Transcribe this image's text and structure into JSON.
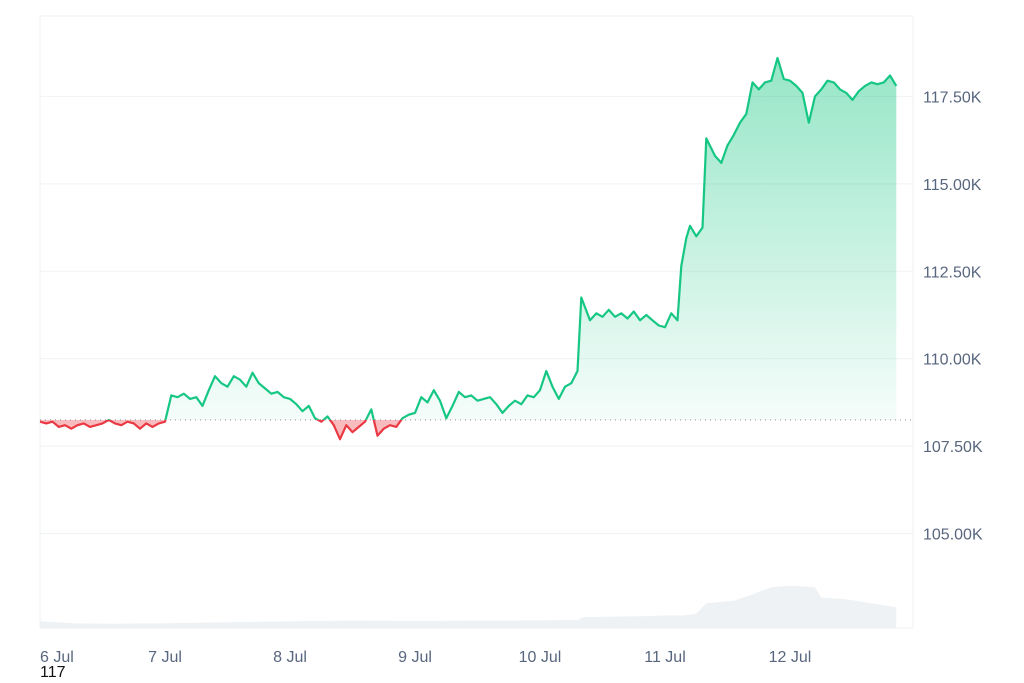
{
  "chart_data": {
    "type": "area",
    "title": "",
    "xlabel": "",
    "ylabel": "",
    "x_tick_labels": [
      "6 Jul",
      "7 Jul",
      "8 Jul",
      "9 Jul",
      "10 Jul",
      "11 Jul",
      "12 Jul"
    ],
    "y_tick_labels": [
      "117.50K",
      "115.00K",
      "112.50K",
      "110.00K",
      "107.50K",
      "105.00K"
    ],
    "y_tick_values": [
      117500,
      115000,
      112500,
      110000,
      107500,
      105000
    ],
    "ylim": [
      102300,
      119800
    ],
    "x_range_days": [
      0,
      6.85
    ],
    "baseline": 108250,
    "grid": true,
    "colors": {
      "up": "#16c784",
      "down": "#ea3943",
      "volume": "#eff2f5",
      "grid": "#eff2f5",
      "baseline": "#8a8f99"
    },
    "series": [
      {
        "values": [
          [
            0.0,
            108200
          ],
          [
            0.05,
            108150
          ],
          [
            0.1,
            108200
          ],
          [
            0.15,
            108050
          ],
          [
            0.2,
            108100
          ],
          [
            0.25,
            108000
          ],
          [
            0.3,
            108100
          ],
          [
            0.35,
            108150
          ],
          [
            0.4,
            108050
          ],
          [
            0.45,
            108100
          ],
          [
            0.5,
            108150
          ],
          [
            0.55,
            108250
          ],
          [
            0.6,
            108150
          ],
          [
            0.65,
            108100
          ],
          [
            0.7,
            108200
          ],
          [
            0.75,
            108150
          ],
          [
            0.8,
            108000
          ],
          [
            0.85,
            108150
          ],
          [
            0.9,
            108050
          ],
          [
            0.95,
            108150
          ],
          [
            1.0,
            108200
          ],
          [
            1.05,
            108950
          ],
          [
            1.1,
            108900
          ],
          [
            1.15,
            109000
          ],
          [
            1.2,
            108850
          ],
          [
            1.25,
            108900
          ],
          [
            1.3,
            108650
          ],
          [
            1.35,
            109100
          ],
          [
            1.4,
            109500
          ],
          [
            1.45,
            109300
          ],
          [
            1.5,
            109200
          ],
          [
            1.55,
            109500
          ],
          [
            1.6,
            109400
          ],
          [
            1.65,
            109200
          ],
          [
            1.7,
            109600
          ],
          [
            1.75,
            109300
          ],
          [
            1.8,
            109150
          ],
          [
            1.85,
            109000
          ],
          [
            1.9,
            109050
          ],
          [
            1.95,
            108900
          ],
          [
            2.0,
            108850
          ],
          [
            2.05,
            108700
          ],
          [
            2.1,
            108500
          ],
          [
            2.15,
            108650
          ],
          [
            2.2,
            108300
          ],
          [
            2.25,
            108200
          ],
          [
            2.3,
            108350
          ],
          [
            2.35,
            108100
          ],
          [
            2.4,
            107700
          ],
          [
            2.45,
            108100
          ],
          [
            2.5,
            107900
          ],
          [
            2.55,
            108050
          ],
          [
            2.6,
            108200
          ],
          [
            2.65,
            108550
          ],
          [
            2.7,
            107800
          ],
          [
            2.75,
            108000
          ],
          [
            2.8,
            108100
          ],
          [
            2.85,
            108050
          ],
          [
            2.9,
            108300
          ],
          [
            2.95,
            108400
          ],
          [
            3.0,
            108450
          ],
          [
            3.05,
            108900
          ],
          [
            3.1,
            108750
          ],
          [
            3.15,
            109100
          ],
          [
            3.2,
            108800
          ],
          [
            3.25,
            108300
          ],
          [
            3.3,
            108650
          ],
          [
            3.35,
            109050
          ],
          [
            3.4,
            108900
          ],
          [
            3.45,
            108950
          ],
          [
            3.5,
            108800
          ],
          [
            3.55,
            108850
          ],
          [
            3.6,
            108900
          ],
          [
            3.65,
            108700
          ],
          [
            3.7,
            108450
          ],
          [
            3.75,
            108650
          ],
          [
            3.8,
            108800
          ],
          [
            3.85,
            108700
          ],
          [
            3.9,
            108950
          ],
          [
            3.95,
            108900
          ],
          [
            4.0,
            109100
          ],
          [
            4.05,
            109650
          ],
          [
            4.1,
            109200
          ],
          [
            4.15,
            108850
          ],
          [
            4.2,
            109200
          ],
          [
            4.25,
            109300
          ],
          [
            4.3,
            109650
          ],
          [
            4.33,
            111750
          ],
          [
            4.4,
            111100
          ],
          [
            4.45,
            111300
          ],
          [
            4.5,
            111200
          ],
          [
            4.55,
            111400
          ],
          [
            4.6,
            111200
          ],
          [
            4.65,
            111300
          ],
          [
            4.7,
            111150
          ],
          [
            4.75,
            111350
          ],
          [
            4.8,
            111100
          ],
          [
            4.85,
            111250
          ],
          [
            4.9,
            111100
          ],
          [
            4.95,
            110950
          ],
          [
            5.0,
            110900
          ],
          [
            5.05,
            111300
          ],
          [
            5.1,
            111100
          ],
          [
            5.13,
            112650
          ],
          [
            5.17,
            113450
          ],
          [
            5.2,
            113800
          ],
          [
            5.25,
            113500
          ],
          [
            5.3,
            113750
          ],
          [
            5.33,
            116300
          ],
          [
            5.4,
            115800
          ],
          [
            5.45,
            115600
          ],
          [
            5.5,
            116100
          ],
          [
            5.55,
            116400
          ],
          [
            5.6,
            116750
          ],
          [
            5.65,
            117000
          ],
          [
            5.7,
            117900
          ],
          [
            5.75,
            117700
          ],
          [
            5.8,
            117900
          ],
          [
            5.85,
            117950
          ],
          [
            5.9,
            118600
          ],
          [
            5.95,
            118000
          ],
          [
            6.0,
            117950
          ],
          [
            6.05,
            117800
          ],
          [
            6.1,
            117600
          ],
          [
            6.15,
            116750
          ],
          [
            6.2,
            117500
          ],
          [
            6.25,
            117700
          ],
          [
            6.3,
            117950
          ],
          [
            6.35,
            117900
          ],
          [
            6.4,
            117700
          ],
          [
            6.45,
            117600
          ],
          [
            6.5,
            117400
          ],
          [
            6.55,
            117650
          ],
          [
            6.6,
            117800
          ],
          [
            6.65,
            117900
          ],
          [
            6.7,
            117850
          ],
          [
            6.75,
            117900
          ],
          [
            6.8,
            118100
          ],
          [
            6.85,
            117800
          ]
        ]
      }
    ],
    "volume": [
      [
        0.0,
        0.42
      ],
      [
        0.3,
        0.28
      ],
      [
        0.6,
        0.26
      ],
      [
        1.0,
        0.3
      ],
      [
        1.5,
        0.36
      ],
      [
        2.0,
        0.42
      ],
      [
        2.5,
        0.46
      ],
      [
        3.0,
        0.44
      ],
      [
        3.5,
        0.46
      ],
      [
        4.0,
        0.48
      ],
      [
        4.3,
        0.5
      ],
      [
        4.35,
        0.68
      ],
      [
        4.8,
        0.74
      ],
      [
        5.05,
        0.8
      ],
      [
        5.15,
        0.78
      ],
      [
        5.25,
        0.9
      ],
      [
        5.33,
        1.55
      ],
      [
        5.55,
        1.7
      ],
      [
        5.7,
        2.1
      ],
      [
        5.85,
        2.55
      ],
      [
        6.0,
        2.65
      ],
      [
        6.2,
        2.55
      ],
      [
        6.25,
        1.9
      ],
      [
        6.45,
        1.8
      ],
      [
        6.65,
        1.55
      ],
      [
        6.85,
        1.3
      ]
    ],
    "volume_max": 3.0
  },
  "footer": {
    "value": "117"
  }
}
